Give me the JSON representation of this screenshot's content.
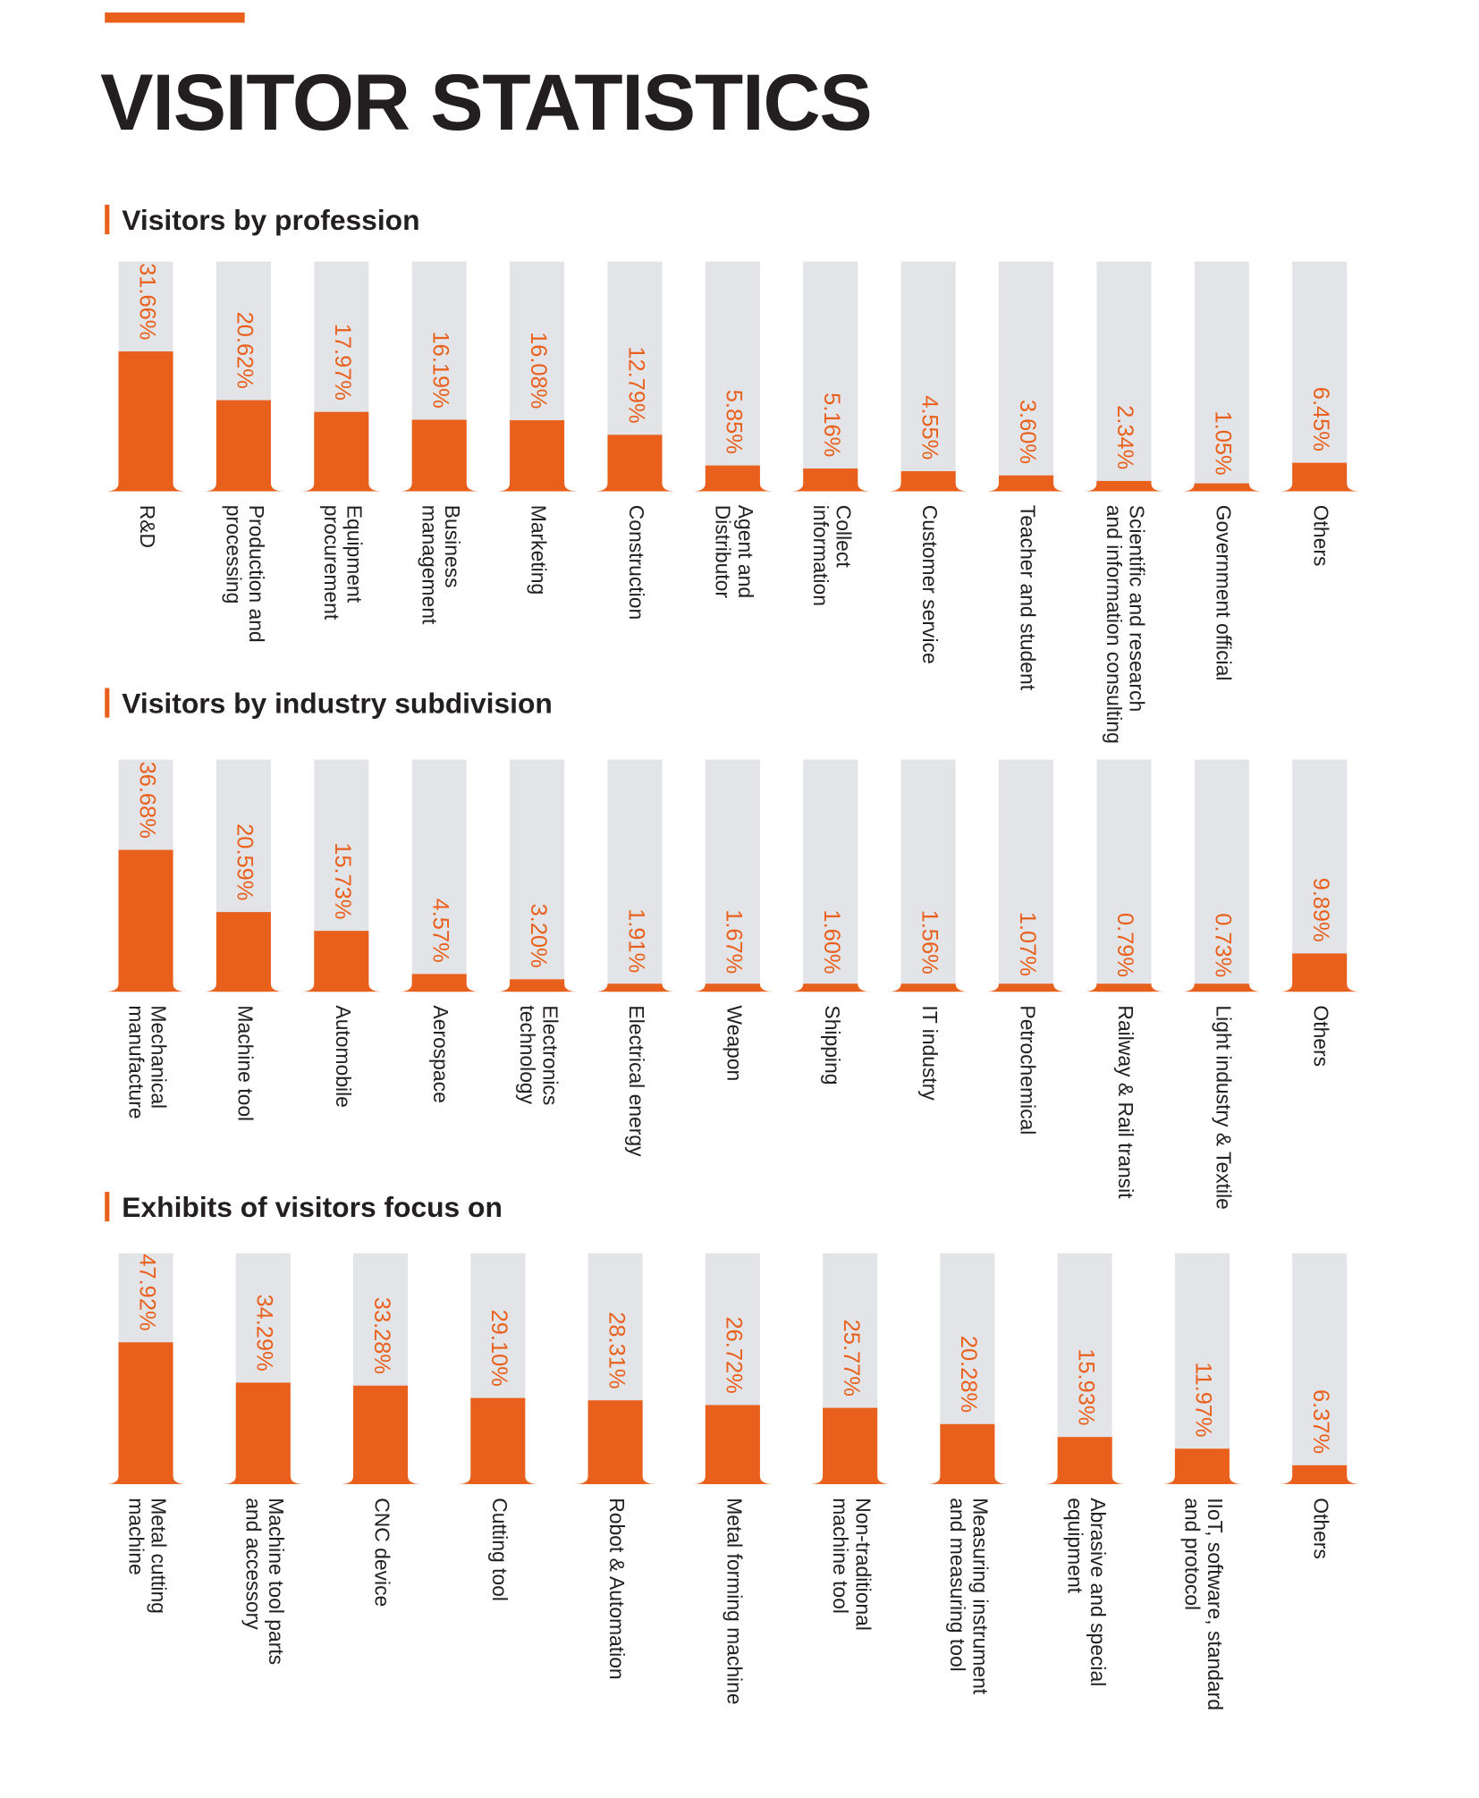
{
  "title": "VISITOR STATISTICS",
  "chart_data": [
    {
      "type": "bar",
      "title": "Visitors by profession",
      "color": "#e8601c",
      "track_color": "#e3e4e8",
      "ylim": [
        0,
        52
      ],
      "categories": [
        [
          "R&D"
        ],
        [
          "Production and",
          "processing"
        ],
        [
          "Equipment",
          "procurement"
        ],
        [
          "Business",
          "management"
        ],
        [
          "Marketing"
        ],
        [
          "Construction"
        ],
        [
          "Agent and",
          "Distributor"
        ],
        [
          "Collect",
          "information"
        ],
        [
          "Customer service"
        ],
        [
          "Teacher and student"
        ],
        [
          "Scientific and research",
          "and information consulting"
        ],
        [
          "Government official"
        ],
        [
          "Others"
        ]
      ],
      "values": [
        31.66,
        20.62,
        17.97,
        16.19,
        16.08,
        12.79,
        5.85,
        5.16,
        4.55,
        3.6,
        2.34,
        1.05,
        6.45
      ],
      "value_labels": [
        "31.66%",
        "20.62%",
        "17.97%",
        "16.19%",
        "16.08%",
        "12.79%",
        "5.85%",
        "5.16%",
        "4.55%",
        "3.60%",
        "2.34%",
        "1.05%",
        "6.45%"
      ]
    },
    {
      "type": "bar",
      "title": "Visitors by industry subdivision",
      "color": "#e8601c",
      "track_color": "#e3e4e8",
      "ylim": [
        0,
        60
      ],
      "categories": [
        [
          "Mechanical",
          "manufacture"
        ],
        [
          "Machine tool"
        ],
        [
          "Automobile"
        ],
        [
          "Aerospace"
        ],
        [
          "Electronics",
          "technology"
        ],
        [
          "Electrical energy"
        ],
        [
          "Weapon"
        ],
        [
          "Shipping"
        ],
        [
          "IT industry"
        ],
        [
          "Petrochemical"
        ],
        [
          "Railway & Rail transit"
        ],
        [
          "Light industry & Textile"
        ],
        [
          "Others"
        ]
      ],
      "values": [
        36.68,
        20.59,
        15.73,
        4.57,
        3.2,
        1.91,
        1.67,
        1.6,
        1.56,
        1.07,
        0.79,
        0.73,
        9.89
      ],
      "value_labels": [
        "36.68%",
        "20.59%",
        "15.73%",
        "4.57%",
        "3.20%",
        "1.91%",
        "1.67%",
        "1.60%",
        "1.56%",
        "1.07%",
        "0.79%",
        "0.73%",
        "9.89%"
      ]
    },
    {
      "type": "bar",
      "title": "Exhibits of visitors focus on",
      "color": "#e8601c",
      "track_color": "#e3e4e8",
      "ylim": [
        0,
        78
      ],
      "categories": [
        [
          "Metal cutting",
          "machine"
        ],
        [
          "Machine tool parts",
          "and accessory"
        ],
        [
          "CNC device"
        ],
        [
          "Cutting tool"
        ],
        [
          "Robot & Automation"
        ],
        [
          "Metal forming machine"
        ],
        [
          "Non-traditional",
          "machine tool"
        ],
        [
          "Measuring instrument",
          "and measuring tool"
        ],
        [
          "Abrasive and special",
          "equipment"
        ],
        [
          "IIoT, software, standard",
          "and protocol"
        ],
        [
          "Others"
        ]
      ],
      "values": [
        47.92,
        34.29,
        33.28,
        29.1,
        28.31,
        26.72,
        25.77,
        20.28,
        15.93,
        11.97,
        6.37
      ],
      "value_labels": [
        "47.92%",
        "34.29%",
        "33.28%",
        "29.10%",
        "28.31%",
        "26.72%",
        "25.77%",
        "20.28%",
        "15.93%",
        "11.97%",
        "6.37%"
      ]
    }
  ]
}
